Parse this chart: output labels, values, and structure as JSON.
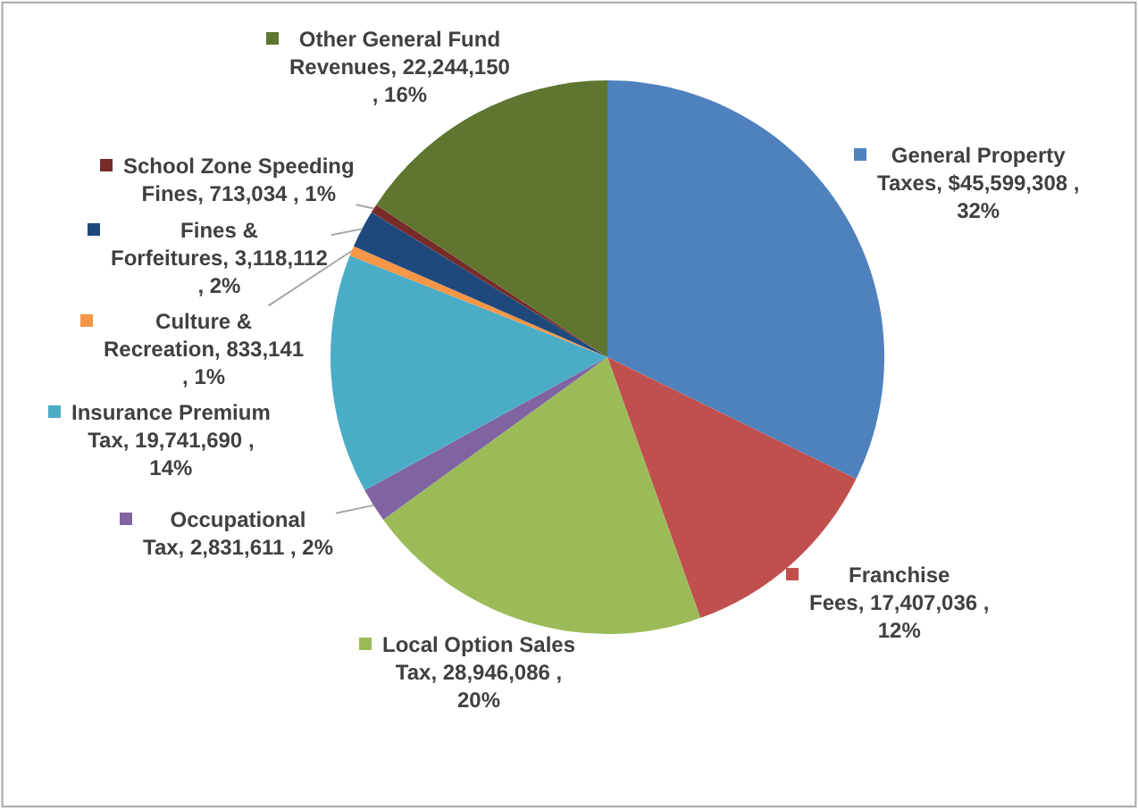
{
  "chart_data": {
    "type": "pie",
    "categories": [
      "General Property Taxes",
      "Franchise Fees",
      "Local Option Sales Tax",
      "Occupational Tax",
      "Insurance Premium Tax",
      "Culture & Recreation",
      "Fines & Forfeitures",
      "School Zone Speeding Fines",
      "Other General Fund Revenues"
    ],
    "values": [
      45599308,
      17407036,
      28946086,
      2831611,
      19741690,
      833141,
      3118112,
      713034,
      22244150
    ],
    "colors": [
      "#4f81bd",
      "#c0504d",
      "#9bbb59",
      "#8064a2",
      "#4bacc6",
      "#f79646",
      "#1f497d",
      "#772c2a",
      "#5f7530"
    ],
    "legend": "bottom left",
    "value_labels": [
      "$45,599,308 , 32%",
      "17,407,036 , 12%",
      "28,946,086 , 20%",
      "2,831,611 , 2%",
      "19,741,690 , 14%",
      "833,141 , 1%",
      "3,118,112 , 2%",
      "713,034 , 1%",
      "22,244,150 , 16%"
    ]
  }
}
